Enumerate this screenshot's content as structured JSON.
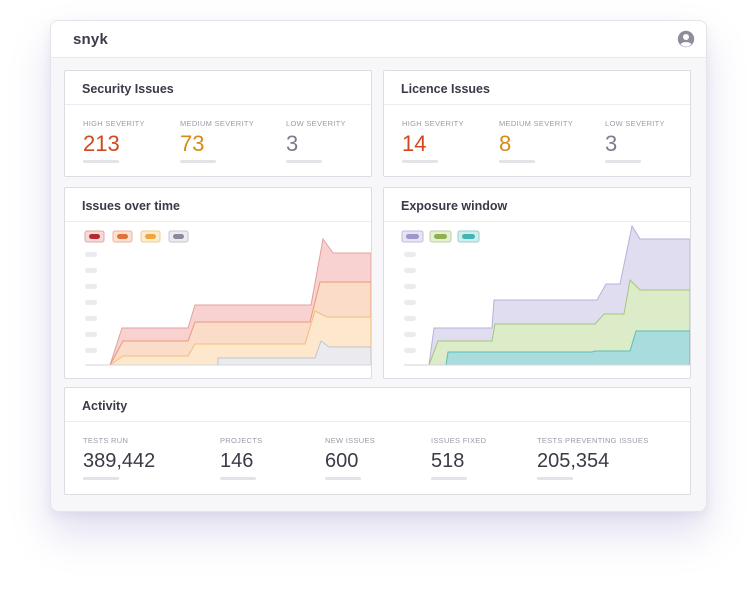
{
  "app": {
    "brand": "snyk"
  },
  "security": {
    "title": "Security Issues",
    "stats": [
      {
        "label": "HIGH SEVERITY",
        "value": "213",
        "color": "#d0491f"
      },
      {
        "label": "MEDIUM  SEVERITY",
        "value": "73",
        "color": "#d88a14"
      },
      {
        "label": "LOW SEVERITY",
        "value": "3",
        "color": "#7c7c8e"
      }
    ]
  },
  "licence": {
    "title": "Licence Issues",
    "stats": [
      {
        "label": "HIGH SEVERITY",
        "value": "14",
        "color": "#d0491f"
      },
      {
        "label": "MEDIUM  SEVERITY",
        "value": "8",
        "color": "#d88a14"
      },
      {
        "label": "LOW SEVERITY",
        "value": "3",
        "color": "#7c7c8e"
      }
    ]
  },
  "issues_chart": {
    "title": "Issues over time",
    "legend_colors": [
      "#b52a30",
      "#e2703c",
      "#f0a63c",
      "#8a8a98"
    ]
  },
  "exposure_chart": {
    "title": "Exposure window",
    "legend_colors": [
      "#9c97cc",
      "#8fb04e",
      "#43b3b3"
    ]
  },
  "activity": {
    "title": "Activity",
    "stats": [
      {
        "label": "TESTS RUN",
        "value": "389,442"
      },
      {
        "label": "PROJECTS",
        "value": "146"
      },
      {
        "label": "NEW ISSUES",
        "value": "600"
      },
      {
        "label": "ISSUES FIXED",
        "value": "518"
      },
      {
        "label": "TESTS PREVENTING ISSUES",
        "value": "205,354"
      }
    ]
  }
}
